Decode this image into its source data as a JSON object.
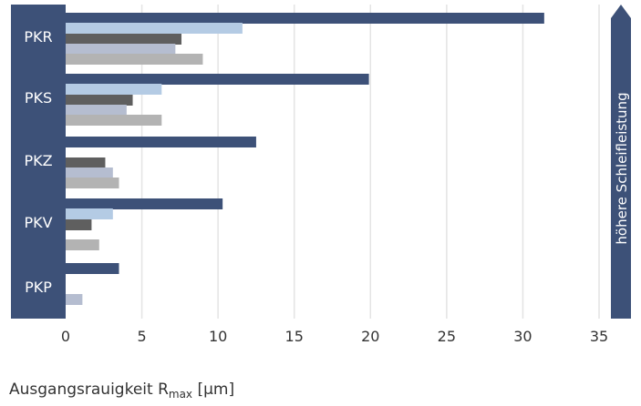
{
  "chart_data": {
    "type": "bar",
    "orientation": "horizontal",
    "categories": [
      "PKR",
      "PKS",
      "PKZ",
      "PKV",
      "PKP"
    ],
    "series": [
      {
        "values": [
          31.4,
          19.9,
          12.5,
          10.3,
          3.5
        ],
        "color": "#3d5178"
      },
      {
        "values": [
          11.6,
          6.3,
          null,
          3.1,
          null
        ],
        "color": "#b4cbe4"
      },
      {
        "values": [
          7.6,
          4.4,
          2.6,
          1.7,
          null
        ],
        "color": "#5f5f5f"
      },
      {
        "values": [
          7.2,
          4.0,
          3.1,
          null,
          1.1
        ],
        "color": "#b5bdd0"
      },
      {
        "values": [
          9.0,
          6.3,
          3.5,
          2.2,
          null
        ],
        "color": "#b3b3b3"
      }
    ],
    "xlim": [
      0,
      35
    ],
    "xticks": [
      0,
      5,
      10,
      15,
      20,
      25,
      30,
      35
    ],
    "xlabel_main": "Ausgangsrauigkeit R",
    "xlabel_sub": "max",
    "xlabel_unit": " [µm]",
    "side_label": "höhere Schleifleistung",
    "grid": true,
    "colors": {
      "category_band": "#3d5178",
      "grid": "#e4e4e4",
      "arrow": "#3d5178"
    }
  }
}
